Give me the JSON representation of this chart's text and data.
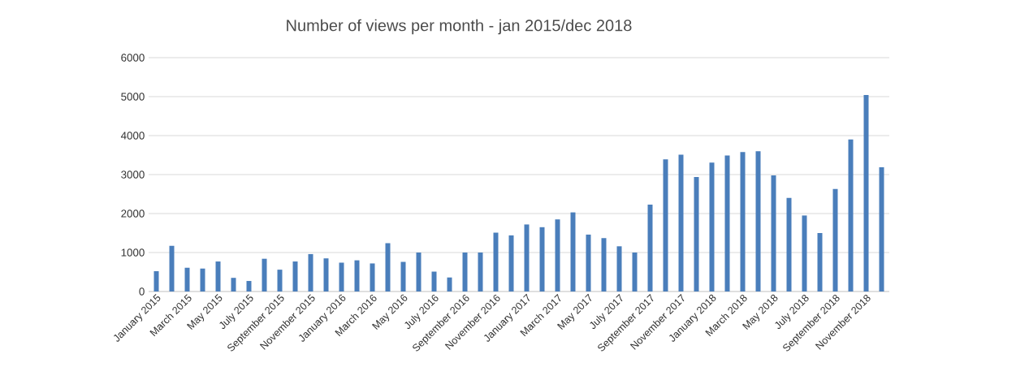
{
  "chart_data": {
    "type": "bar",
    "title": "Number of views per month - jan 2015/dec 2018",
    "categories": [
      "January 2015",
      null,
      "March 2015",
      null,
      "May 2015",
      null,
      "July 2015",
      null,
      "September 2015",
      null,
      "November 2015",
      null,
      "January 2016",
      null,
      "March 2016",
      null,
      "May 2016",
      null,
      "July 2016",
      null,
      "September 2016",
      null,
      "November 2016",
      null,
      "January 2017",
      null,
      "March 2017",
      null,
      "May 2017",
      null,
      "July 2017",
      null,
      "September 2017",
      null,
      "November 2017",
      null,
      "January 2018",
      null,
      "March 2018",
      null,
      "May 2018",
      null,
      "July 2018",
      null,
      "September 2018",
      null,
      "November 2018",
      null
    ],
    "values": [
      520,
      1170,
      610,
      590,
      770,
      350,
      270,
      840,
      560,
      770,
      960,
      850,
      740,
      800,
      720,
      1240,
      760,
      1000,
      510,
      360,
      1000,
      1000,
      1510,
      1440,
      1720,
      1650,
      1850,
      2030,
      1460,
      1370,
      1160,
      1000,
      2230,
      3390,
      3510,
      2940,
      3310,
      3490,
      3580,
      3600,
      2980,
      2400,
      1950,
      1500,
      2630,
      3900,
      5040,
      3190
    ],
    "color": "#4a7ebb",
    "ylim": [
      0,
      6000
    ],
    "yticks": [
      0,
      1000,
      2000,
      3000,
      4000,
      5000,
      6000
    ],
    "grid": "y"
  }
}
